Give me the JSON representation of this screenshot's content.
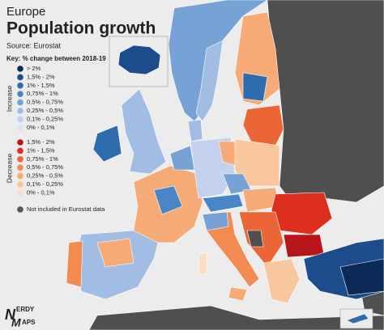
{
  "header": {
    "kicker": "Europe",
    "title": "Population growth",
    "source": "Source: Eurostat"
  },
  "legend": {
    "title": "Key: % change between 2018-19",
    "increase": {
      "label": "Increase",
      "items": [
        {
          "label": "> 2%",
          "color": "#0c2a57"
        },
        {
          "label": "1,5% - 2%",
          "color": "#1d4c8c"
        },
        {
          "label": "1% - 1,5%",
          "color": "#2e6cae"
        },
        {
          "label": "0,75% - 1%",
          "color": "#4a86c5"
        },
        {
          "label": "0,5% - 0,75%",
          "color": "#77a2d5"
        },
        {
          "label": "0,25% - 0,5%",
          "color": "#a2bde3"
        },
        {
          "label": "0,1% - 0,25%",
          "color": "#c3d1ee"
        },
        {
          "label": "0% - 0,1%",
          "color": "#dfe1f2"
        }
      ]
    },
    "decrease": {
      "label": "Decrease",
      "items": [
        {
          "label": "1,5% - 2%",
          "color": "#b8151a"
        },
        {
          "label": "1% - 1,5%",
          "color": "#dd2e1e"
        },
        {
          "label": "0,75% - 1%",
          "color": "#ec6537"
        },
        {
          "label": "0,5% - 0,75%",
          "color": "#f28a52"
        },
        {
          "label": "0,25% - 0,5%",
          "color": "#f6ab76"
        },
        {
          "label": "0,1% - 0,25%",
          "color": "#f8c79e"
        },
        {
          "label": "0% - 0,1%",
          "color": "#fadec6"
        }
      ]
    },
    "excluded": {
      "label": "Not included in Eurostat data",
      "color": "#555555"
    }
  },
  "logo": {
    "initial1": "N",
    "part1": "ERDY",
    "initial2": "M",
    "part2": "APS"
  }
}
